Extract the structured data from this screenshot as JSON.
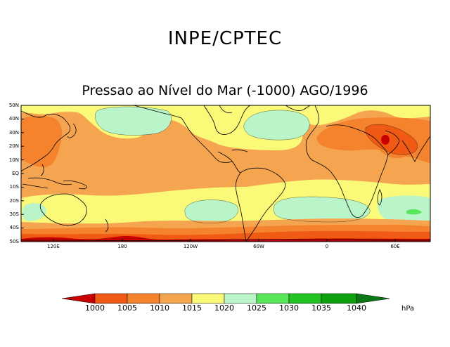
{
  "header": {
    "organization": "INPE/CPTEC",
    "map_title": "Pressao ao Nível do Mar (-1000) AGO/1996"
  },
  "map": {
    "lat_ticks": [
      "50N",
      "40N",
      "30N",
      "20N",
      "10N",
      "EQ",
      "10S",
      "20S",
      "30S",
      "40S",
      "50S"
    ],
    "lon_ticks": [
      "120E",
      "180",
      "120W",
      "60W",
      "0",
      "60E"
    ],
    "projection": "cylindrical equidistant, 85E to 105E (wrapped), 50S to 50N"
  },
  "legend": {
    "unit": "hPa",
    "levels": [
      "1000",
      "1005",
      "1010",
      "1015",
      "1020",
      "1025",
      "1030",
      "1035",
      "1040"
    ],
    "colors": [
      "#c80000",
      "#f05a14",
      "#f5822d",
      "#f5a550",
      "#fafa78",
      "#b9f5c8",
      "#5ae65a",
      "#23c323",
      "#0fa00f",
      "#0a7814"
    ]
  },
  "colors": {
    "below_1000": "#c80000",
    "range_1000_1005": "#f05a14",
    "range_1005_1010": "#f5822d",
    "range_1010_1015": "#f5a550",
    "range_1015_1020": "#fafa78",
    "range_1020_1025": "#b9f5c8",
    "range_1025_1030": "#5ae65a",
    "above_1040": "#0a7814"
  }
}
